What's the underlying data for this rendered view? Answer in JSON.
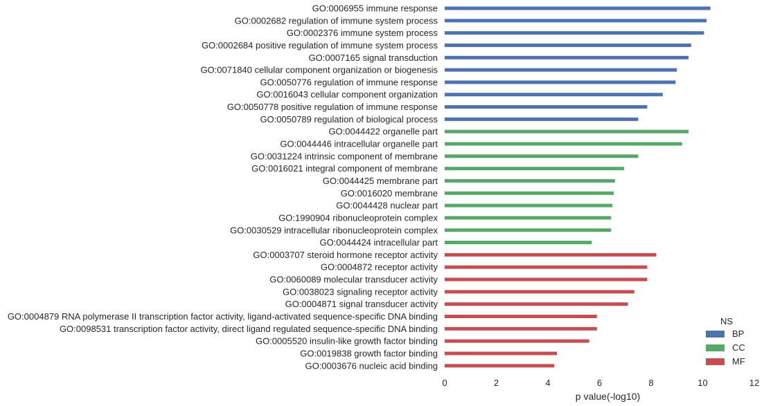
{
  "chart_data": {
    "type": "bar",
    "orientation": "horizontal",
    "xlabel": "p value(-log10)",
    "xlim": [
      0,
      12
    ],
    "xticks": [
      "0",
      "2",
      "4",
      "6",
      "8",
      "10",
      "12"
    ],
    "grid": false,
    "legend": {
      "title": "NS",
      "placement": "bottom-right",
      "entries": [
        {
          "name": "BP",
          "color": "#4c72b0"
        },
        {
          "name": "CC",
          "color": "#55a868"
        },
        {
          "name": "MF",
          "color": "#c44e52"
        }
      ]
    },
    "bars": [
      {
        "label": "GO:0006955 immune response",
        "group": "BP",
        "value": 10.3
      },
      {
        "label": "GO:0002682 regulation of immune system process",
        "group": "BP",
        "value": 10.15
      },
      {
        "label": "GO:0002376 immune system process",
        "group": "BP",
        "value": 10.05
      },
      {
        "label": "GO:0002684 positive regulation of immune system process",
        "group": "BP",
        "value": 9.55
      },
      {
        "label": "GO:0007165 signal transduction",
        "group": "BP",
        "value": 9.45
      },
      {
        "label": "GO:0071840 cellular component organization or biogenesis",
        "group": "BP",
        "value": 9.0
      },
      {
        "label": "GO:0050776 regulation of immune response",
        "group": "BP",
        "value": 8.95
      },
      {
        "label": "GO:0016043 cellular component organization",
        "group": "BP",
        "value": 8.45
      },
      {
        "label": "GO:0050778 positive regulation of immune response",
        "group": "BP",
        "value": 7.85
      },
      {
        "label": "GO:0050789 regulation of biological process",
        "group": "BP",
        "value": 7.5
      },
      {
        "label": "GO:0044422 organelle part",
        "group": "CC",
        "value": 9.45
      },
      {
        "label": "GO:0044446 intracellular organelle part",
        "group": "CC",
        "value": 9.2
      },
      {
        "label": "GO:0031224 intrinsic component of membrane",
        "group": "CC",
        "value": 7.5
      },
      {
        "label": "GO:0016021 integral component of membrane",
        "group": "CC",
        "value": 6.95
      },
      {
        "label": "GO:0044425 membrane part",
        "group": "CC",
        "value": 6.6
      },
      {
        "label": "GO:0016020 membrane",
        "group": "CC",
        "value": 6.55
      },
      {
        "label": "GO:0044428 nuclear part",
        "group": "CC",
        "value": 6.5
      },
      {
        "label": "GO:1990904 ribonucleoprotein complex",
        "group": "CC",
        "value": 6.45
      },
      {
        "label": "GO:0030529 intracellular ribonucleoprotein complex",
        "group": "CC",
        "value": 6.45
      },
      {
        "label": "GO:0044424 intracellular part",
        "group": "CC",
        "value": 5.7
      },
      {
        "label": "GO:0003707 steroid hormone receptor activity",
        "group": "MF",
        "value": 8.2
      },
      {
        "label": "GO:0004872 receptor activity",
        "group": "MF",
        "value": 7.85
      },
      {
        "label": "GO:0060089 molecular transducer activity",
        "group": "MF",
        "value": 7.85
      },
      {
        "label": "GO:0038023 signaling receptor activity",
        "group": "MF",
        "value": 7.35
      },
      {
        "label": "GO:0004871 signal transducer activity",
        "group": "MF",
        "value": 7.1
      },
      {
        "label": "GO:0004879 RNA polymerase II transcription factor activity, ligand-activated sequence-specific DNA binding",
        "group": "MF",
        "value": 5.9
      },
      {
        "label": "GO:0098531 transcription factor activity, direct ligand regulated sequence-specific DNA binding",
        "group": "MF",
        "value": 5.9
      },
      {
        "label": "GO:0005520 insulin-like growth factor binding",
        "group": "MF",
        "value": 5.6
      },
      {
        "label": "GO:0019838 growth factor binding",
        "group": "MF",
        "value": 4.35
      },
      {
        "label": "GO:0003676 nucleic acid binding",
        "group": "MF",
        "value": 4.25
      }
    ]
  }
}
